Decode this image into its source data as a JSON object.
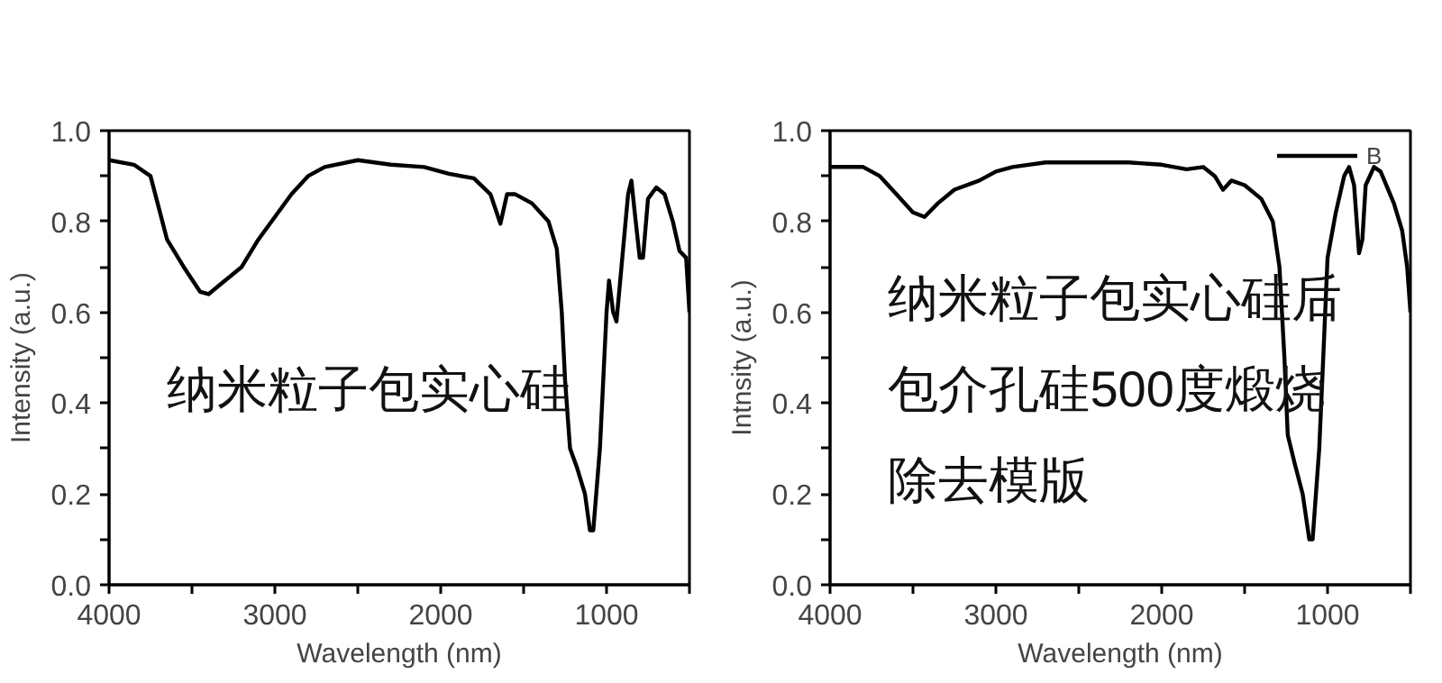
{
  "chart_data": [
    {
      "type": "line",
      "xlabel": "Wavelength (nm)",
      "ylabel": "Intensity (a.u.)",
      "xlim": [
        4000,
        500
      ],
      "ylim": [
        0.0,
        1.0
      ],
      "xticks": [
        4000,
        {
          "value": 3500,
          "label": null
        },
        3000,
        {
          "value": 2500,
          "label": null
        },
        2000,
        {
          "value": 1500,
          "label": null
        },
        1000,
        {
          "value": 500,
          "label": null
        }
      ],
      "yticks": [
        {
          "value": 0.0,
          "label": "0.0"
        },
        {
          "value": 0.1,
          "label": null
        },
        0.2,
        {
          "value": 0.3,
          "label": null
        },
        0.4,
        {
          "value": 0.5,
          "label": null
        },
        0.6,
        {
          "value": 0.7,
          "label": null
        },
        0.8,
        {
          "value": 0.9,
          "label": null
        },
        {
          "value": 1.0,
          "label": "1.0"
        }
      ],
      "grid": false,
      "legend": false,
      "marker": "none",
      "line_style": "solid",
      "annotations": [
        "纳米粒子包实心硅"
      ],
      "series": [
        {
          "color": "#000000",
          "x": [
            4000,
            3850,
            3750,
            3700,
            3650,
            3550,
            3450,
            3400,
            3300,
            3200,
            3100,
            3000,
            2900,
            2800,
            2700,
            2500,
            2300,
            2100,
            1950,
            1800,
            1700,
            1640,
            1600,
            1550,
            1450,
            1350,
            1300,
            1270,
            1250,
            1220,
            1180,
            1130,
            1100,
            1080,
            1040,
            1000,
            985,
            960,
            940,
            910,
            870,
            850,
            830,
            800,
            780,
            750,
            700,
            650,
            600,
            560,
            520,
            500
          ],
          "values": [
            0.935,
            0.925,
            0.9,
            0.83,
            0.76,
            0.7,
            0.645,
            0.64,
            0.67,
            0.7,
            0.76,
            0.81,
            0.86,
            0.9,
            0.92,
            0.935,
            0.925,
            0.92,
            0.905,
            0.895,
            0.86,
            0.795,
            0.86,
            0.86,
            0.84,
            0.8,
            0.74,
            0.6,
            0.45,
            0.3,
            0.26,
            0.2,
            0.12,
            0.12,
            0.3,
            0.6,
            0.67,
            0.6,
            0.58,
            0.7,
            0.86,
            0.89,
            0.82,
            0.72,
            0.72,
            0.85,
            0.875,
            0.86,
            0.8,
            0.735,
            0.72,
            0.6
          ]
        }
      ]
    },
    {
      "type": "line",
      "xlabel": "Wavelength (nm)",
      "ylabel": "Intnsity (a.u.)",
      "xlim": [
        4000,
        500
      ],
      "ylim": [
        0.0,
        1.0
      ],
      "xticks": [
        4000,
        {
          "value": 3500,
          "label": null
        },
        3000,
        {
          "value": 2500,
          "label": null
        },
        2000,
        {
          "value": 1500,
          "label": null
        },
        1000,
        {
          "value": 500,
          "label": null
        }
      ],
      "yticks": [
        {
          "value": 0.0,
          "label": "0.0"
        },
        {
          "value": 0.1,
          "label": null
        },
        0.2,
        {
          "value": 0.3,
          "label": null
        },
        0.4,
        {
          "value": 0.5,
          "label": null
        },
        0.6,
        {
          "value": 0.7,
          "label": null
        },
        0.8,
        {
          "value": 0.9,
          "label": null
        },
        {
          "value": 1.0,
          "label": "1.0"
        }
      ],
      "grid": false,
      "legend": "top right",
      "marker": "none",
      "line_style": "solid",
      "annotations": [
        "纳米粒子包实心硅后",
        "包介孔硅500度煅烧",
        "除去模版"
      ],
      "series": [
        {
          "name": "B",
          "color": "#000000",
          "x": [
            4000,
            3800,
            3700,
            3600,
            3500,
            3430,
            3350,
            3250,
            3100,
            3000,
            2900,
            2700,
            2400,
            2200,
            2000,
            1850,
            1750,
            1680,
            1630,
            1580,
            1500,
            1400,
            1330,
            1290,
            1260,
            1240,
            1200,
            1150,
            1110,
            1090,
            1050,
            1020,
            1000,
            950,
            900,
            870,
            840,
            810,
            790,
            770,
            720,
            680,
            600,
            550,
            520,
            500
          ],
          "values": [
            0.92,
            0.92,
            0.9,
            0.86,
            0.82,
            0.81,
            0.84,
            0.87,
            0.89,
            0.91,
            0.92,
            0.93,
            0.93,
            0.93,
            0.925,
            0.915,
            0.92,
            0.9,
            0.87,
            0.89,
            0.88,
            0.85,
            0.8,
            0.7,
            0.5,
            0.33,
            0.27,
            0.2,
            0.1,
            0.1,
            0.3,
            0.55,
            0.72,
            0.82,
            0.9,
            0.92,
            0.88,
            0.73,
            0.76,
            0.88,
            0.92,
            0.91,
            0.84,
            0.78,
            0.7,
            0.6
          ]
        }
      ]
    }
  ]
}
